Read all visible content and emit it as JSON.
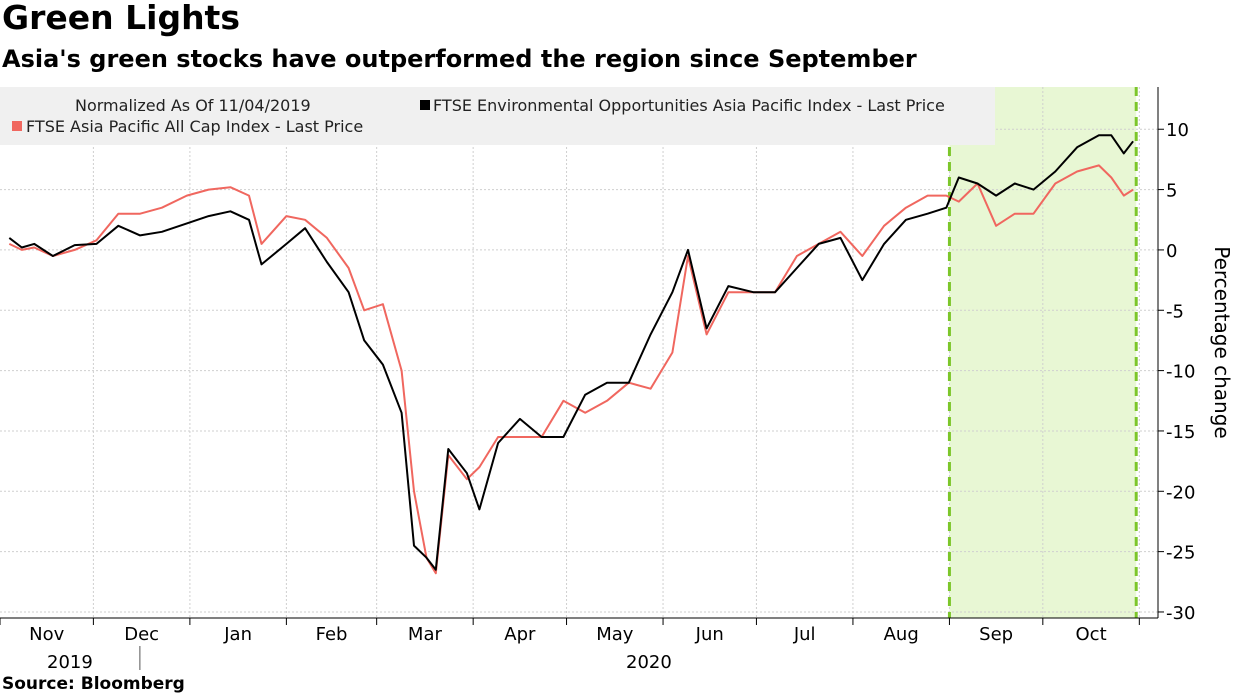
{
  "title": "Green Lights",
  "subtitle": "Asia's green stocks have outperformed the region since September",
  "source": "Source: Bloomberg",
  "chart_data": {
    "type": "line",
    "ylabel": "Percentage change",
    "ylim": [
      -30.5,
      13.5
    ],
    "yticks": [
      10,
      5,
      0,
      -5,
      -10,
      -15,
      -20,
      -25,
      -30
    ],
    "grid": true,
    "legend": {
      "placement": "top-left",
      "note": "Normalized As Of 11/04/2019",
      "items": [
        {
          "label": "FTSE Environmental Opportunities Asia Pacific Index - Last Price",
          "color": "#000000"
        },
        {
          "label": "FTSE Asia Pacific All Cap Index - Last Price",
          "color": "#f0675f"
        }
      ]
    },
    "x_months": [
      "Nov",
      "Dec",
      "Jan",
      "Feb",
      "Mar",
      "Apr",
      "May",
      "Jun",
      "Jul",
      "Aug",
      "Sep",
      "Oct"
    ],
    "x_years": [
      "2019",
      "2020"
    ],
    "highlight": {
      "from": "2020-09-01",
      "to": "2020-10-31",
      "color": "#e8f7d4",
      "line_color": "#7cc62a"
    },
    "x": [
      "2019-11-04",
      "2019-11-08",
      "2019-11-12",
      "2019-11-18",
      "2019-11-25",
      "2019-12-02",
      "2019-12-09",
      "2019-12-16",
      "2019-12-23",
      "2019-12-31",
      "2020-01-07",
      "2020-01-14",
      "2020-01-20",
      "2020-01-24",
      "2020-02-01",
      "2020-02-07",
      "2020-02-14",
      "2020-02-21",
      "2020-02-26",
      "2020-03-03",
      "2020-03-09",
      "2020-03-13",
      "2020-03-17",
      "2020-03-20",
      "2020-03-24",
      "2020-03-30",
      "2020-04-03",
      "2020-04-09",
      "2020-04-16",
      "2020-04-23",
      "2020-04-30",
      "2020-05-07",
      "2020-05-14",
      "2020-05-21",
      "2020-05-28",
      "2020-06-04",
      "2020-06-09",
      "2020-06-15",
      "2020-06-22",
      "2020-06-30",
      "2020-07-07",
      "2020-07-14",
      "2020-07-21",
      "2020-07-28",
      "2020-08-04",
      "2020-08-11",
      "2020-08-18",
      "2020-08-25",
      "2020-08-31",
      "2020-09-04",
      "2020-09-10",
      "2020-09-16",
      "2020-09-22",
      "2020-09-28",
      "2020-10-05",
      "2020-10-12",
      "2020-10-19",
      "2020-10-23",
      "2020-10-27",
      "2020-10-30"
    ],
    "series": [
      {
        "name": "FTSE Environmental Opportunities Asia Pacific Index - Last Price",
        "color": "#000000",
        "values": [
          1.0,
          0.2,
          0.5,
          -0.5,
          0.4,
          0.5,
          2.0,
          1.2,
          1.5,
          2.2,
          2.8,
          3.2,
          2.5,
          -1.2,
          0.5,
          1.8,
          -1.0,
          -3.5,
          -7.5,
          -9.5,
          -13.5,
          -24.5,
          -25.5,
          -26.5,
          -16.5,
          -18.5,
          -21.5,
          -16.0,
          -14.0,
          -15.5,
          -15.5,
          -12.0,
          -11.0,
          -11.0,
          -7.0,
          -3.5,
          0.0,
          -6.5,
          -3.0,
          -3.5,
          -3.5,
          -1.5,
          0.5,
          1.0,
          -2.5,
          0.5,
          2.5,
          3.0,
          3.5,
          6.0,
          5.5,
          4.5,
          5.5,
          5.0,
          6.5,
          8.5,
          9.5,
          9.5,
          8.0,
          9.0
        ]
      },
      {
        "name": "FTSE Asia Pacific All Cap Index - Last Price",
        "color": "#f0675f",
        "values": [
          0.5,
          0.0,
          0.2,
          -0.5,
          0.0,
          0.8,
          3.0,
          3.0,
          3.5,
          4.5,
          5.0,
          5.2,
          4.5,
          0.5,
          2.8,
          2.5,
          1.0,
          -1.5,
          -5.0,
          -4.5,
          -10.0,
          -20.0,
          -25.5,
          -26.8,
          -17.0,
          -19.0,
          -18.0,
          -15.5,
          -15.5,
          -15.5,
          -12.5,
          -13.5,
          -12.5,
          -11.0,
          -11.5,
          -8.5,
          -0.5,
          -7.0,
          -3.5,
          -3.5,
          -3.5,
          -0.5,
          0.5,
          1.5,
          -0.5,
          2.0,
          3.5,
          4.5,
          4.5,
          4.0,
          5.5,
          2.0,
          3.0,
          3.0,
          5.5,
          6.5,
          7.0,
          6.0,
          4.5,
          5.0
        ]
      }
    ]
  }
}
